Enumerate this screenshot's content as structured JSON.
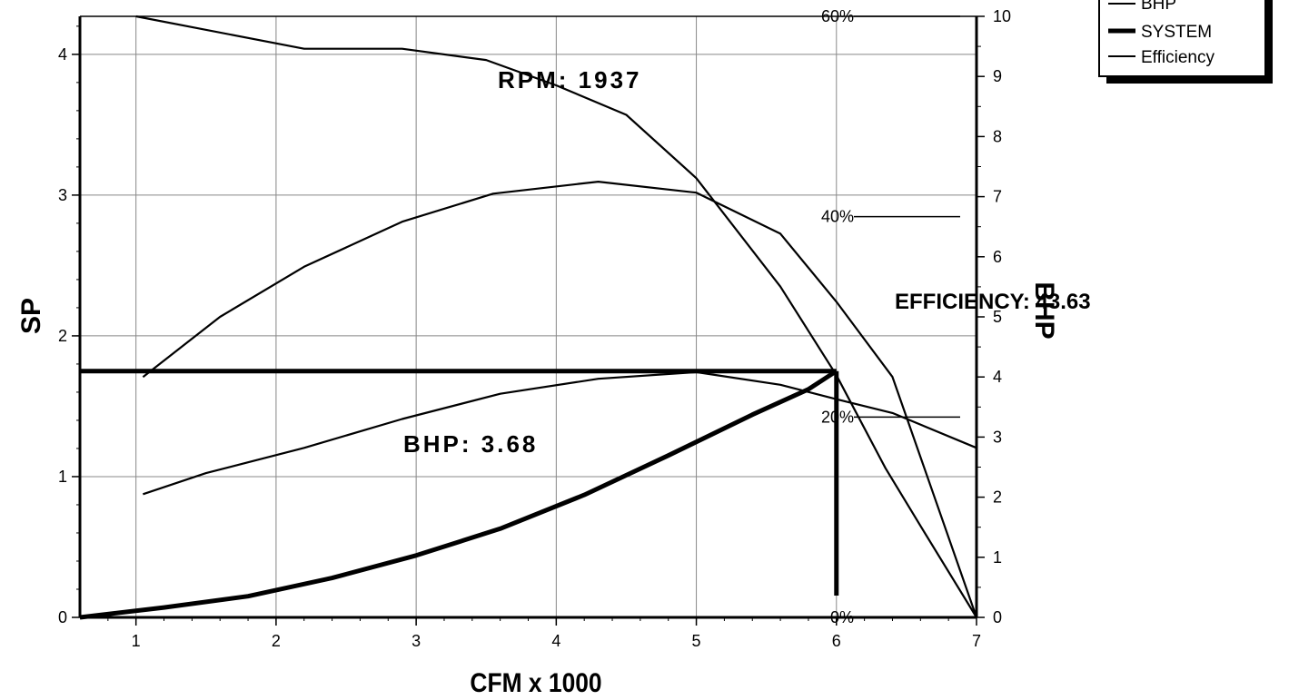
{
  "chart_data": {
    "type": "line",
    "xlabel": "CFM x 1000",
    "ylabel": "SP",
    "y2label": "BHP",
    "xlim": [
      0.6,
      7
    ],
    "ylim": [
      0,
      4.27
    ],
    "y2lim": [
      0,
      10
    ],
    "x_ticks": [
      "1",
      "2",
      "3",
      "4",
      "5",
      "6",
      "7"
    ],
    "y_ticks": [
      "0",
      "1",
      "2",
      "3",
      "4"
    ],
    "y2_ticks": [
      "0",
      "1",
      "2",
      "3",
      "4",
      "5",
      "6",
      "7",
      "8",
      "9",
      "10"
    ],
    "efficiency_ticks": [
      "0%",
      "20%",
      "40%",
      "60%"
    ],
    "grid": true,
    "legend": {
      "position": "top-right",
      "entries": [
        "BHP",
        "SYSTEM",
        "Efficiency"
      ]
    },
    "annotations": {
      "rpm": "RPM: 1937",
      "bhp": "BHP: 3.68",
      "efficiency": "EFFICIENCY: 43.63"
    },
    "series": [
      {
        "name": "SP",
        "axis": "left",
        "x": [
          1.0,
          2.2,
          2.9,
          3.5,
          4.0,
          4.5,
          5.0,
          5.6,
          6.0,
          6.35,
          6.6,
          7.0
        ],
        "y": [
          4.27,
          4.04,
          4.04,
          3.96,
          3.78,
          3.57,
          3.12,
          2.35,
          1.72,
          1.06,
          0.65,
          0.0
        ]
      },
      {
        "name": "BHP",
        "axis": "right",
        "x": [
          1.05,
          1.5,
          2.2,
          2.9,
          3.6,
          4.3,
          5.0,
          5.6,
          6.0,
          6.4,
          7.0
        ],
        "y": [
          2.05,
          2.4,
          2.82,
          3.3,
          3.72,
          3.97,
          4.08,
          3.87,
          3.63,
          3.4,
          2.82
        ]
      },
      {
        "name": "SYSTEM",
        "axis": "left",
        "x": [
          0.6,
          1.2,
          1.8,
          2.4,
          3.0,
          3.6,
          4.2,
          4.8,
          5.4,
          5.8,
          6.0
        ],
        "y": [
          0.0,
          0.07,
          0.15,
          0.28,
          0.44,
          0.63,
          0.87,
          1.15,
          1.44,
          1.62,
          1.75
        ]
      },
      {
        "name": "Efficiency",
        "axis": "efficiency",
        "x": [
          1.05,
          1.6,
          2.2,
          2.9,
          3.55,
          4.3,
          5.0,
          5.6,
          6.0,
          6.4,
          7.0
        ],
        "y": [
          0.24,
          0.3,
          0.35,
          0.395,
          0.423,
          0.435,
          0.424,
          0.383,
          0.315,
          0.24,
          0.0
        ]
      }
    ],
    "operating_point": {
      "x": 6.0,
      "y": 1.75
    }
  }
}
